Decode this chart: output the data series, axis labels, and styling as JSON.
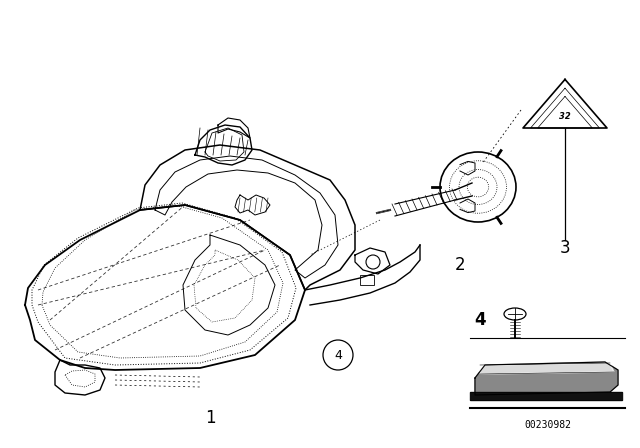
{
  "bg_color": "#ffffff",
  "line_color": "#000000",
  "fig_width": 6.4,
  "fig_height": 4.48,
  "dpi": 100,
  "diagram_id": "00230982"
}
